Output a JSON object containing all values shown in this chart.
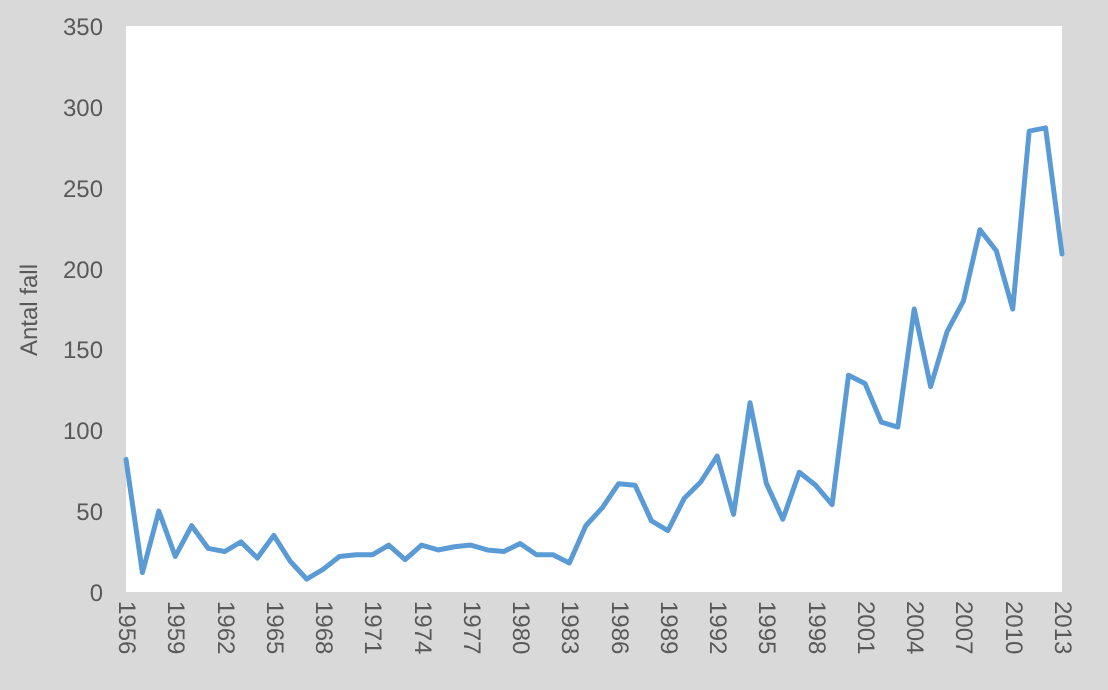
{
  "chart_data": {
    "type": "line",
    "ylabel": "Antal fall",
    "x": [
      1956,
      1957,
      1958,
      1959,
      1960,
      1961,
      1962,
      1963,
      1964,
      1965,
      1966,
      1967,
      1968,
      1969,
      1970,
      1971,
      1972,
      1973,
      1974,
      1975,
      1976,
      1977,
      1978,
      1979,
      1980,
      1981,
      1982,
      1983,
      1984,
      1985,
      1986,
      1987,
      1988,
      1989,
      1990,
      1991,
      1992,
      1993,
      1994,
      1995,
      1996,
      1997,
      1998,
      1999,
      2000,
      2001,
      2002,
      2003,
      2004,
      2005,
      2006,
      2007,
      2008,
      2009,
      2010,
      2011,
      2012,
      2013
    ],
    "series": [
      {
        "color": "#5b9bd5",
        "values": [
          82,
          12,
          50,
          22,
          41,
          27,
          25,
          31,
          21,
          35,
          19,
          8,
          14,
          22,
          23,
          23,
          29,
          20,
          29,
          26,
          28,
          29,
          26,
          25,
          30,
          23,
          23,
          18,
          41,
          52,
          67,
          66,
          44,
          38,
          58,
          68,
          84,
          48,
          117,
          67,
          45,
          74,
          66,
          54,
          134,
          129,
          105,
          102,
          175,
          127,
          161,
          180,
          224,
          211,
          175,
          285,
          287,
          209
        ]
      }
    ],
    "xlim": [
      1956,
      2013
    ],
    "xticks": [
      1956,
      1959,
      1962,
      1965,
      1968,
      1971,
      1974,
      1977,
      1980,
      1983,
      1986,
      1989,
      1992,
      1995,
      1998,
      2001,
      2004,
      2007,
      2010,
      2013
    ],
    "ylim": [
      0,
      350
    ],
    "yticks": [
      0,
      50,
      100,
      150,
      200,
      250,
      300,
      350
    ],
    "grid": false,
    "legend": false,
    "marker": "none",
    "line_style": "solid"
  }
}
